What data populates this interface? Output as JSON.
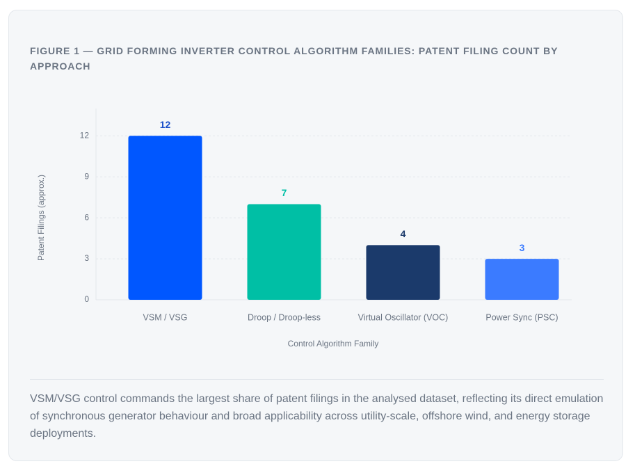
{
  "chart_data": {
    "type": "bar",
    "title": "FIGURE 1 — GRID FORMING INVERTER CONTROL ALGORITHM FAMILIES: PATENT FILING COUNT BY APPROACH",
    "categories": [
      "VSM / VSG",
      "Droop / Droop-less",
      "Virtual Oscillator (VOC)",
      "Power Sync (PSC)"
    ],
    "values": [
      12,
      7,
      4,
      3
    ],
    "colors": [
      "#0057ff",
      "#00bfa5",
      "#1b3a6b",
      "#3b7bff"
    ],
    "label_colors": [
      "#1a4fc9",
      "#00bfa5",
      "#1b3a6b",
      "#3b7bff"
    ],
    "x_label": "Control Algorithm Family",
    "y_label": "Patent Filings (approx.)",
    "ylim": [
      0,
      14
    ],
    "yticks": [
      0,
      3,
      6,
      9,
      12
    ],
    "grid": true
  },
  "caption": "VSM/VSG control commands the largest share of patent filings in the analysed dataset, reflecting its direct emulation of synchronous generator behaviour and broad applicability across utility-scale, offshore wind, and energy storage deployments."
}
